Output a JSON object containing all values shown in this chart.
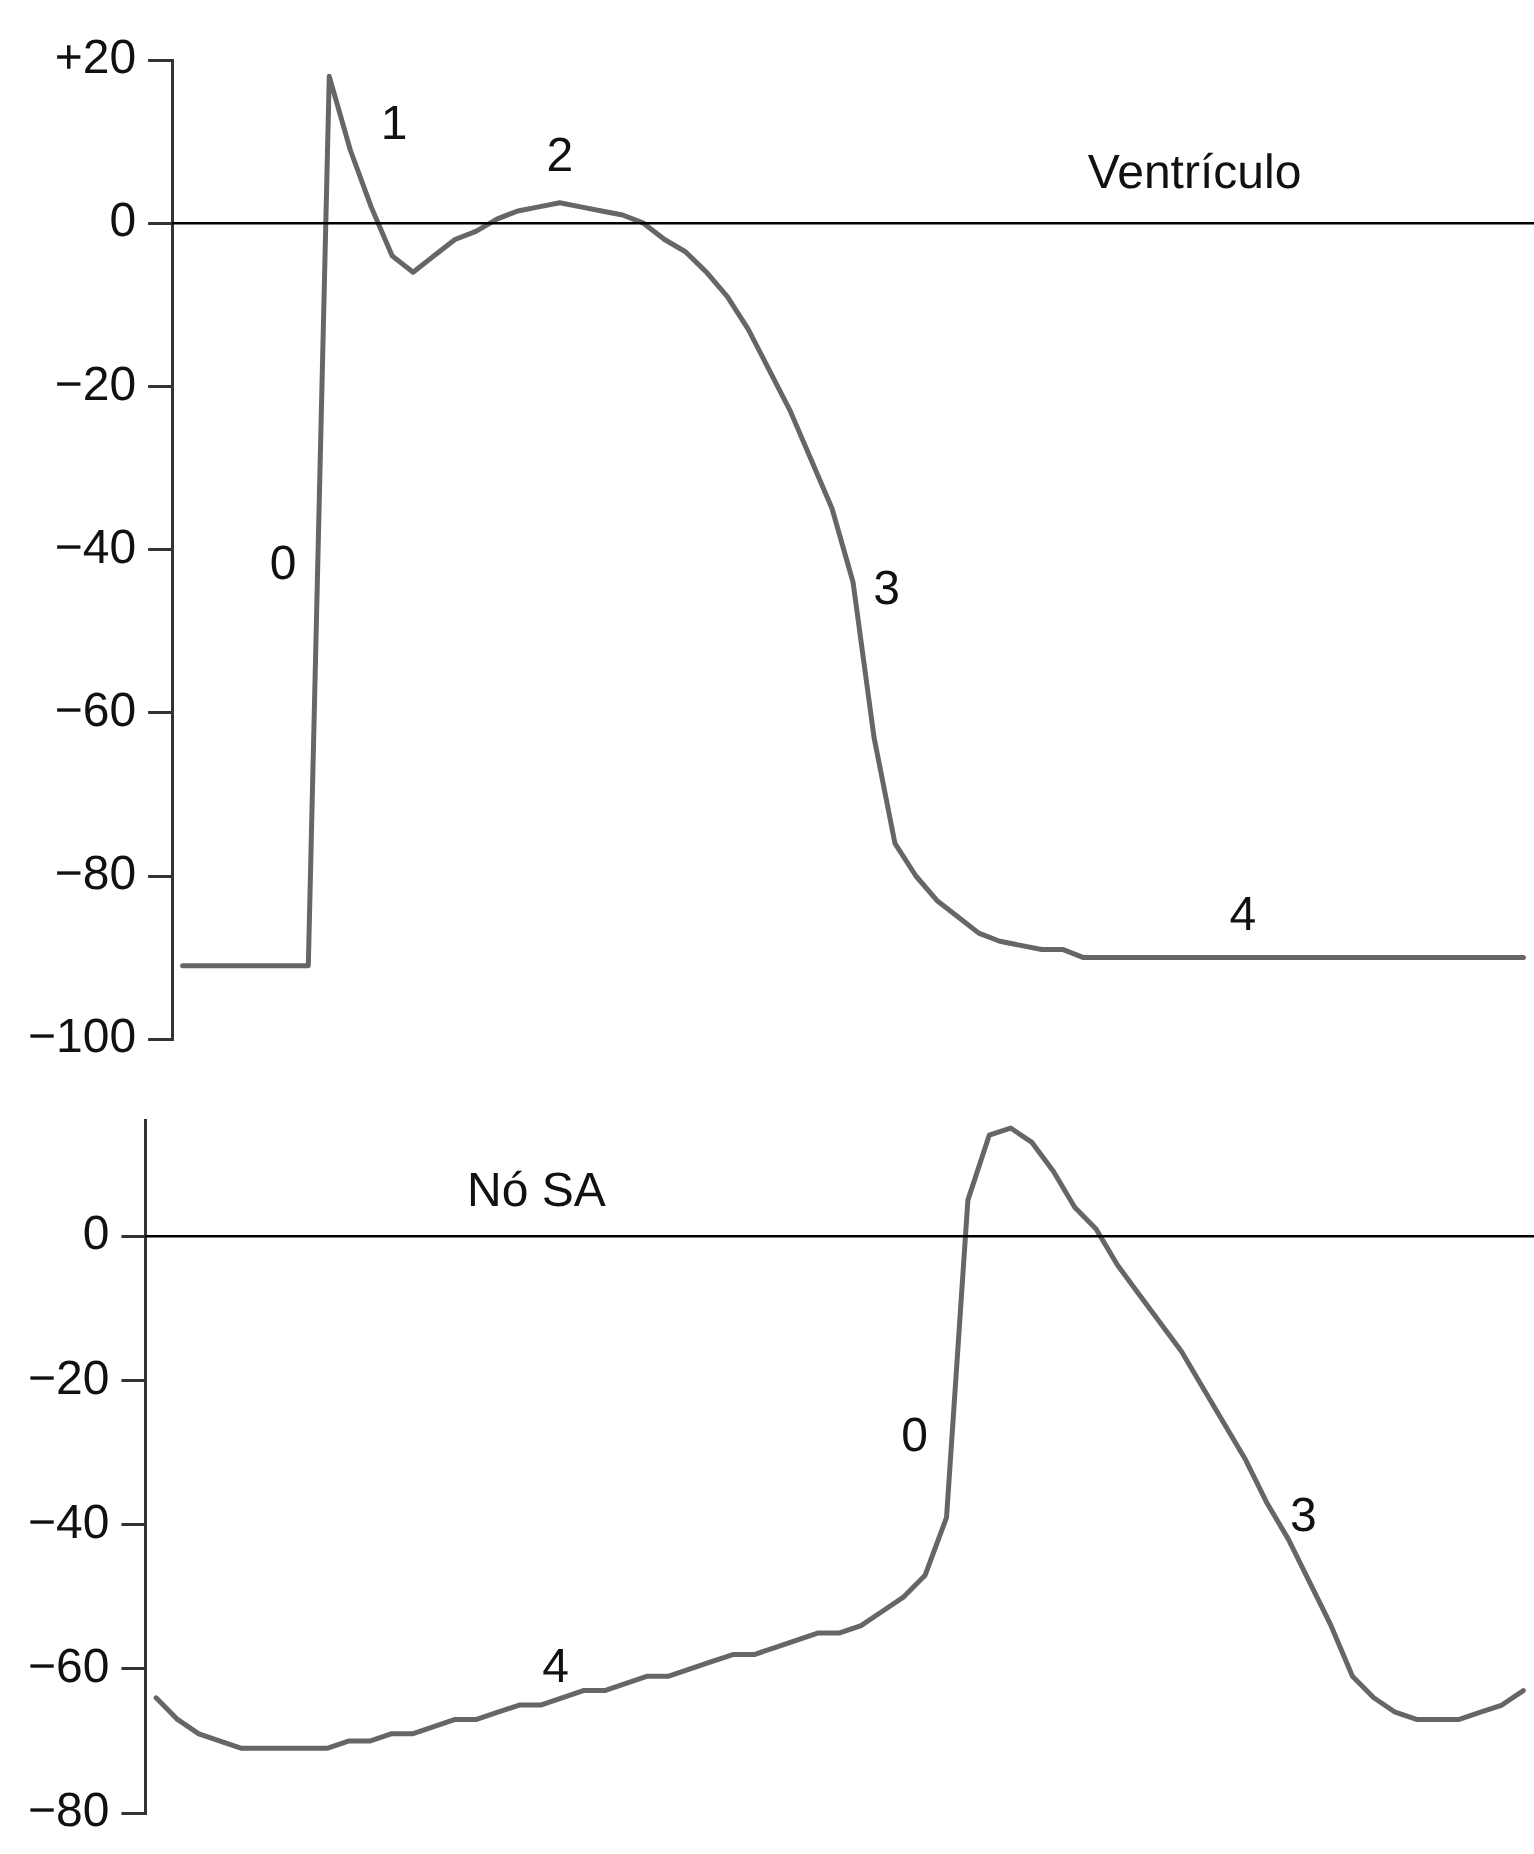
{
  "chart_data": [
    {
      "type": "line",
      "marker": "none",
      "line_style": "solid",
      "tick_labels": "y",
      "categories": [
        null,
        null,
        null,
        null,
        null,
        null,
        null,
        null,
        null,
        null,
        null,
        null,
        null,
        null,
        null,
        null,
        null,
        null,
        null,
        null,
        null,
        null,
        null,
        null,
        null,
        null,
        null,
        null,
        null,
        null,
        null,
        null,
        null,
        null,
        null,
        null,
        null,
        null,
        null,
        null,
        null,
        null,
        null,
        null,
        null,
        null,
        null,
        null,
        null,
        null,
        null,
        null,
        null,
        null,
        null,
        null,
        null,
        null,
        null,
        null,
        null,
        null,
        null,
        null,
        null
      ],
      "ylim": [
        -100,
        20
      ],
      "yticks": [
        {
          "value": 20,
          "label": "+20"
        },
        0,
        {
          "value": -20,
          "label": "−20"
        },
        {
          "value": -40,
          "label": "−40"
        },
        {
          "value": -60,
          "label": "−60"
        },
        {
          "value": -80,
          "label": "−80"
        },
        {
          "value": -100,
          "label": "−100"
        }
      ],
      "series": [
        {
          "color": "#666666",
          "values": [
            -91,
            -91,
            -91,
            -91,
            -91,
            -91,
            -91,
            18,
            9,
            2,
            -4,
            -6,
            -4,
            -2,
            -1,
            0.5,
            1.5,
            2,
            2.5,
            2,
            1.5,
            1,
            0,
            -2,
            -3.5,
            -6,
            -9,
            -13,
            -18,
            -23,
            -29,
            -35,
            -44,
            -63,
            -76,
            -80,
            -83,
            -85,
            -87,
            -88,
            -88.5,
            -89,
            -89,
            -90,
            -90,
            -90,
            -90,
            -90,
            -90,
            -90,
            -90,
            -90,
            -90,
            -90,
            -90,
            -90,
            -90,
            -90,
            -90,
            -90,
            -90,
            -90,
            -90,
            -90,
            -90
          ]
        }
      ],
      "ref_lines": [
        {
          "axis": "y",
          "value": 0,
          "color": "#000000"
        }
      ],
      "annotations": [
        "0",
        "1",
        "2",
        "3",
        "4",
        "Ventrículo"
      ]
    },
    {
      "type": "line",
      "marker": "none",
      "line_style": "solid",
      "tick_labels": "y",
      "categories": [
        null,
        null,
        null,
        null,
        null,
        null,
        null,
        null,
        null,
        null,
        null,
        null,
        null,
        null,
        null,
        null,
        null,
        null,
        null,
        null,
        null,
        null,
        null,
        null,
        null,
        null,
        null,
        null,
        null,
        null,
        null,
        null,
        null,
        null,
        null,
        null,
        null,
        null,
        null,
        null,
        null,
        null,
        null,
        null,
        null,
        null,
        null,
        null,
        null,
        null,
        null,
        null,
        null,
        null,
        null,
        null,
        null,
        null,
        null,
        null,
        null,
        null,
        null,
        null,
        null
      ],
      "ylim": [
        -80,
        16
      ],
      "yticks": [
        0,
        {
          "value": -20,
          "label": "−20"
        },
        {
          "value": -40,
          "label": "−40"
        },
        {
          "value": -60,
          "label": "−60"
        },
        {
          "value": -80,
          "label": "−80"
        }
      ],
      "series": [
        {
          "color": "#666666",
          "values": [
            -64,
            -67,
            -69,
            -70,
            -71,
            -71,
            -71,
            -71,
            -71,
            -70,
            -70,
            -69,
            -69,
            -68,
            -67,
            -67,
            -66,
            -65,
            -65,
            -64,
            -63,
            -63,
            -62,
            -61,
            -61,
            -60,
            -59,
            -58,
            -58,
            -57,
            -56,
            -55,
            -55,
            -54,
            -52,
            -50,
            -47,
            -39,
            5,
            14,
            15,
            13,
            9,
            4,
            1,
            -4,
            -8,
            -12,
            -16,
            -21,
            -26,
            -31,
            -37,
            -42,
            -48,
            -54,
            -61,
            -64,
            -66,
            -67,
            -67,
            -67,
            -66,
            -65,
            -63
          ]
        }
      ],
      "ref_lines": [
        {
          "axis": "y",
          "value": 0,
          "color": "#000000"
        }
      ],
      "annotations": [
        "Nó SA",
        "0",
        "4",
        "3"
      ]
    }
  ]
}
